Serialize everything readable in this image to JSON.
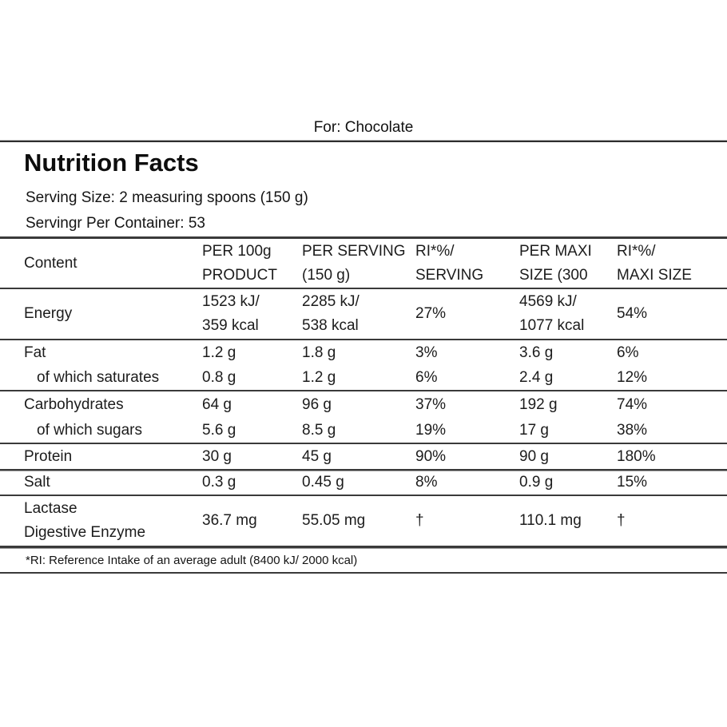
{
  "page": {
    "product_label": "For: Chocolate",
    "title": "Nutrition Facts",
    "serving_size": "Serving Size: 2 measuring spoons (150 g)",
    "servings_per_container": "Servingr Per Container: 53",
    "footnote": "*RI: Reference Intake of an average adult (8400 kJ/ 2000 kcal)"
  },
  "table": {
    "headers": {
      "content": "Content",
      "per_100g": "PER 100g\nPRODUCT",
      "per_serving": "PER SERVING\n(150 g)",
      "ri_serving": "RI*%/\nSERVING",
      "per_maxi": "PER MAXI\nSIZE (300",
      "ri_maxi": "RI*%/\nMAXI SIZE"
    },
    "rows": [
      {
        "label": "Energy",
        "per_100g": "1523 kJ/\n359 kcal",
        "per_serving": "2285 kJ/\n538 kcal",
        "ri_serving": "27%",
        "per_maxi": "4569 kJ/\n1077 kcal",
        "ri_maxi": "54%"
      },
      {
        "label": "Fat",
        "per_100g": "1.2 g",
        "per_serving": "1.8 g",
        "ri_serving": "3%",
        "per_maxi": "3.6 g",
        "ri_maxi": "6%"
      },
      {
        "label": "of which saturates",
        "per_100g": "0.8 g",
        "per_serving": "1.2 g",
        "ri_serving": "6%",
        "per_maxi": "2.4 g",
        "ri_maxi": "12%"
      },
      {
        "label": "Carbohydrates",
        "per_100g": "64 g",
        "per_serving": "96 g",
        "ri_serving": "37%",
        "per_maxi": "192 g",
        "ri_maxi": "74%"
      },
      {
        "label": "of which sugars",
        "per_100g": "5.6 g",
        "per_serving": "8.5 g",
        "ri_serving": "19%",
        "per_maxi": "17 g",
        "ri_maxi": "38%"
      },
      {
        "label": "Protein",
        "per_100g": "30 g",
        "per_serving": "45 g",
        "ri_serving": "90%",
        "per_maxi": "90 g",
        "ri_maxi": "180%"
      },
      {
        "label": "Salt",
        "per_100g": "0.3 g",
        "per_serving": "0.45 g",
        "ri_serving": "8%",
        "per_maxi": "0.9 g",
        "ri_maxi": "15%"
      },
      {
        "label": "Lactase\nDigestive Enzyme",
        "per_100g": "36.7 mg",
        "per_serving": "55.05 mg",
        "ri_serving": "†",
        "per_maxi": "110.1 mg",
        "ri_maxi": "†"
      }
    ]
  },
  "colors": {
    "text": "#1c1c1c",
    "rule": "#3a3a3a",
    "background": "#ffffff"
  }
}
